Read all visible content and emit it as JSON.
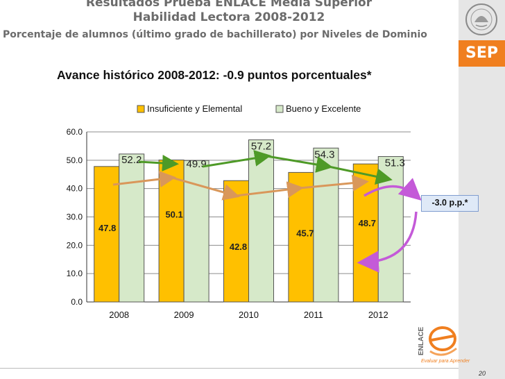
{
  "header": {
    "line1": "Resultados Prueba ENLACE Media Superior",
    "line2": "Habilidad Lectora 2008-2012",
    "line3": "Porcentaje de alumnos (último grado de bachillerato) por Niveles de Dominio"
  },
  "brand": {
    "sep": "SEP",
    "tagline": "Evaluar para Aprender",
    "enlace": "ENLACE"
  },
  "subtitle": "Avance histórico 2008-2012:  -0.9  puntos porcentuales*",
  "callout": "-3.0 p.p.*",
  "page_number": "20",
  "colors": {
    "insuficiente": "#ffc000",
    "bueno": "#d6e9c9",
    "arrow_green": "#4e9a27",
    "arrow_orange": "#d9975a",
    "arrow_purple": "#c45ad8",
    "sep_orange": "#f07f1f"
  },
  "chart_data": {
    "type": "bar",
    "categories": [
      "2008",
      "2009",
      "2010",
      "2011",
      "2012"
    ],
    "series": [
      {
        "name": "Insuficiente y Elemental",
        "values": [
          47.8,
          50.1,
          42.8,
          45.7,
          48.7
        ],
        "labels": [
          "47.8",
          "50.1",
          "42.8",
          "45.7",
          "48.7"
        ]
      },
      {
        "name": "Bueno y Excelente",
        "values": [
          52.2,
          49.9,
          57.2,
          54.3,
          51.3
        ],
        "labels": [
          "52.2",
          "49.9",
          "57.2",
          "54.3",
          "51.3"
        ]
      }
    ],
    "ylim": [
      0,
      60
    ],
    "yticks": [
      "0.0",
      "10.0",
      "20.0",
      "30.0",
      "40.0",
      "50.0",
      "60.0"
    ],
    "grid": true,
    "legend": "top"
  }
}
